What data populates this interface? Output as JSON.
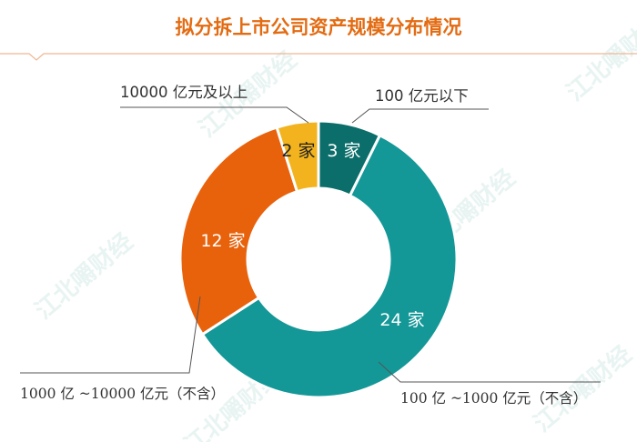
{
  "chart_data": {
    "type": "pie",
    "style": "donut",
    "title": "拟分拆上市公司资产规模分布情况",
    "slices": [
      {
        "label": "100 亿元以下",
        "value": 3,
        "value_label": "3 家",
        "color": "#0b6e6a"
      },
      {
        "label": "100 亿 ~1000 亿元（不含）",
        "value": 24,
        "value_label": "24 家",
        "color": "#149797"
      },
      {
        "label": "1000 亿 ~10000 亿元（不含）",
        "value": 12,
        "value_label": "12 家",
        "color": "#e8620c"
      },
      {
        "label": "10000 亿元及以上",
        "value": 2,
        "value_label": "2 家",
        "color": "#f2b31e"
      }
    ],
    "start_angle_deg": 0,
    "direction": "clockwise"
  },
  "colors": {
    "title": "#e36b12",
    "rule": "#eeb792",
    "leader": "#555555"
  },
  "watermark": "江北嚼财经"
}
